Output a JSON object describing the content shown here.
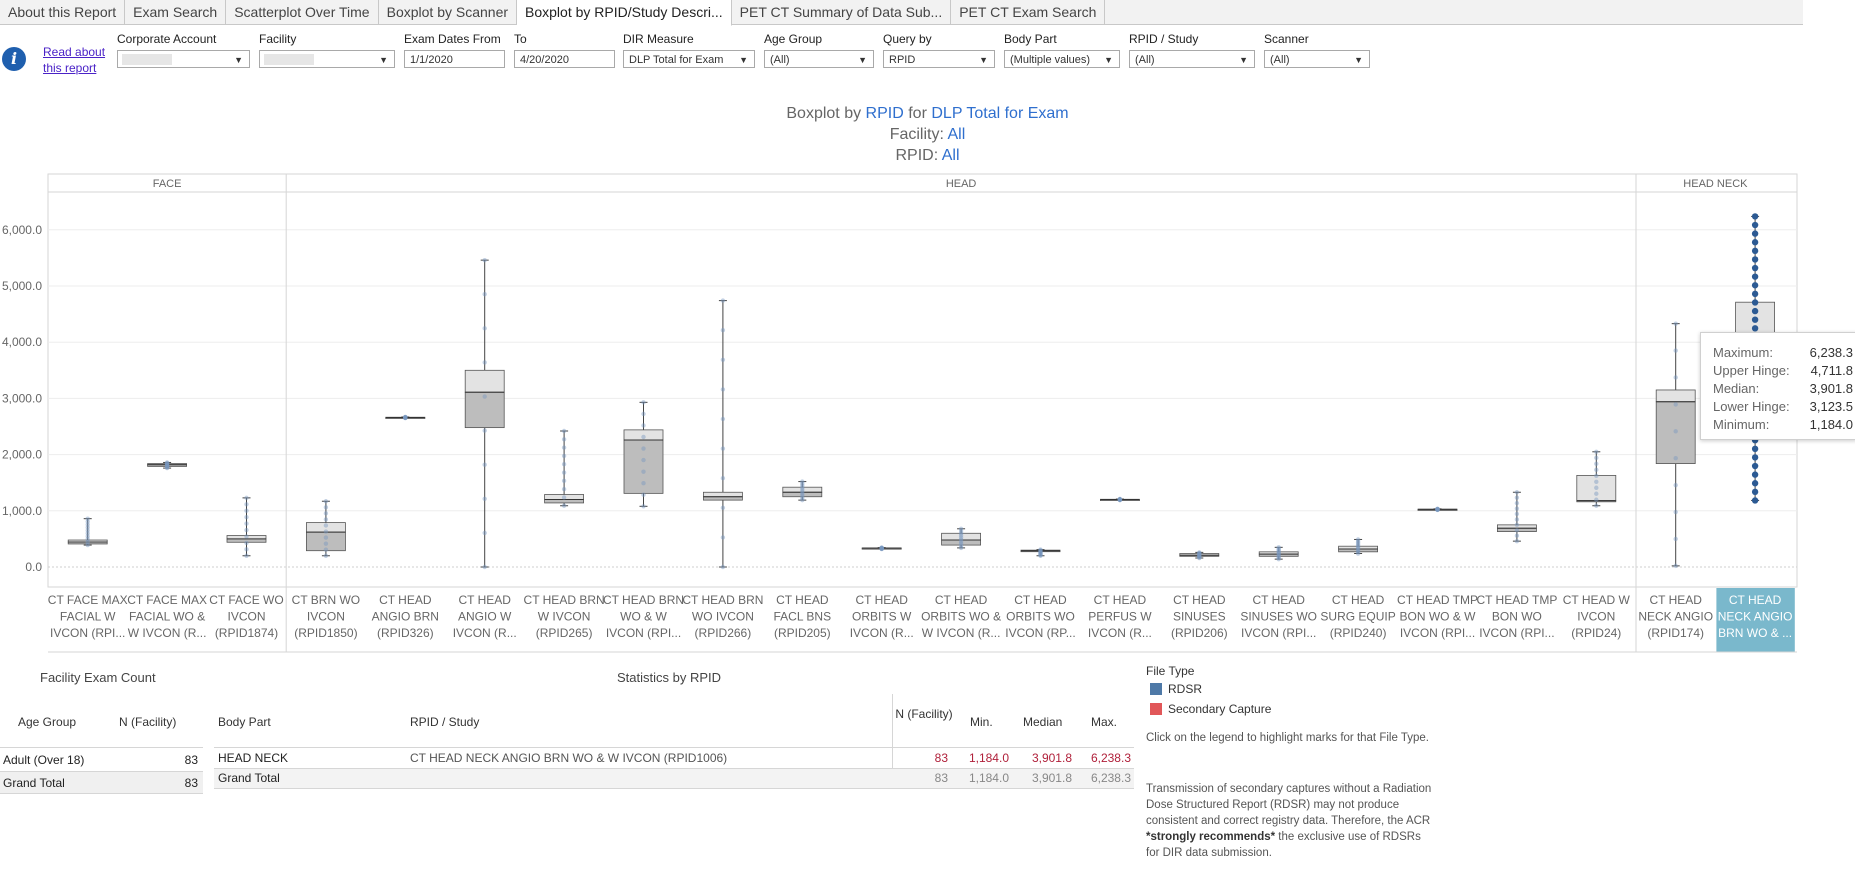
{
  "tabs": [
    {
      "label": "About this Report",
      "active": false
    },
    {
      "label": "Exam Search",
      "active": false
    },
    {
      "label": "Scatterplot Over Time",
      "active": false
    },
    {
      "label": "Boxplot by Scanner",
      "active": false
    },
    {
      "label": "Boxplot by RPID/Study Descri...",
      "active": true
    },
    {
      "label": "PET CT Summary of Data Sub...",
      "active": false
    },
    {
      "label": "PET CT Exam Search",
      "active": false
    }
  ],
  "read_about": "Read about this report",
  "filters": {
    "corporate_account": {
      "label": "Corporate Account",
      "value": ""
    },
    "facility": {
      "label": "Facility",
      "value": ""
    },
    "exam_dates_from": {
      "label": "Exam Dates From",
      "value": "1/1/2020"
    },
    "to": {
      "label": "To",
      "value": "4/20/2020"
    },
    "dir_measure": {
      "label": "DIR Measure",
      "value": "DLP Total for Exam"
    },
    "age_group": {
      "label": "Age Group",
      "value": "(All)"
    },
    "query_by": {
      "label": "Query by",
      "value": "RPID"
    },
    "body_part": {
      "label": "Body Part",
      "value": "(Multiple values)"
    },
    "rpid_study": {
      "label": "RPID / Study",
      "value": "(All)"
    },
    "scanner": {
      "label": "Scanner",
      "value": "(All)"
    }
  },
  "title": {
    "prefix": "Boxplot by",
    "query": "RPID",
    "mid": "for",
    "measure": "DLP Total for Exam",
    "facility_label": "Facility:",
    "facility_value": "All",
    "rpid_label": "RPID:",
    "rpid_value": "All"
  },
  "colors": {
    "accent": "#2f6fce",
    "rdsr": "#4e79a7",
    "secondary_capture": "#e15759",
    "selected_header": "#7ab8cc",
    "red_value": "#b0203a"
  },
  "chart_data": {
    "type": "boxplot",
    "y_ticks": [
      "0.0",
      "1,000.0",
      "2,000.0",
      "3,000.0",
      "4,000.0",
      "5,000.0",
      "6,000.0"
    ],
    "ylim": [
      0,
      6300
    ],
    "groups": [
      {
        "name": "FACE",
        "categories": [
          {
            "label": [
              "CT FACE MAX",
              "FACIAL W",
              "IVCON (RPI..."
            ],
            "min": 390,
            "q1": 410,
            "median": 445,
            "q3": 480,
            "max": 860
          },
          {
            "label": [
              "CT FACE MAX",
              "FACIAL WO &",
              "W IVCON (R..."
            ],
            "min": 1760,
            "q1": 1790,
            "median": 1820,
            "q3": 1840,
            "max": 1860
          },
          {
            "label": [
              "CT FACE WO",
              "IVCON",
              "(RPID1874)"
            ],
            "min": 200,
            "q1": 440,
            "median": 500,
            "q3": 560,
            "max": 1230
          }
        ]
      },
      {
        "name": "HEAD",
        "categories": [
          {
            "label": [
              "CT BRN WO",
              "IVCON",
              "(RPID1850)"
            ],
            "min": 200,
            "q1": 290,
            "median": 620,
            "q3": 790,
            "max": 1170
          },
          {
            "label": [
              "CT HEAD",
              "ANGIO BRN",
              "(RPID326)"
            ],
            "min": 2650,
            "q1": 2655,
            "median": 2660,
            "q3": 2665,
            "max": 2670
          },
          {
            "label": [
              "CT HEAD",
              "ANGIO W",
              "IVCON (R..."
            ],
            "min": 0,
            "q1": 2480,
            "median": 3110,
            "q3": 3500,
            "max": 5460
          },
          {
            "label": [
              "CT HEAD BRN",
              "W IVCON",
              "(RPID265)"
            ],
            "min": 1090,
            "q1": 1140,
            "median": 1200,
            "q3": 1290,
            "max": 2420
          },
          {
            "label": [
              "CT HEAD BRN",
              "WO & W",
              "IVCON (RPI..."
            ],
            "min": 1080,
            "q1": 1310,
            "median": 2260,
            "q3": 2440,
            "max": 2930
          },
          {
            "label": [
              "CT HEAD BRN",
              "WO IVCON",
              "(RPID266)"
            ],
            "min": 0,
            "q1": 1190,
            "median": 1250,
            "q3": 1330,
            "max": 4740
          },
          {
            "label": [
              "CT HEAD",
              "FACL BNS",
              "(RPID205)"
            ],
            "min": 1190,
            "q1": 1250,
            "median": 1330,
            "q3": 1420,
            "max": 1520
          },
          {
            "label": [
              "CT HEAD",
              "ORBITS W",
              "IVCON (R..."
            ],
            "min": 320,
            "q1": 330,
            "median": 335,
            "q3": 340,
            "max": 345
          },
          {
            "label": [
              "CT HEAD",
              "ORBITS WO &",
              "W IVCON (R..."
            ],
            "min": 340,
            "q1": 390,
            "median": 480,
            "q3": 600,
            "max": 680
          },
          {
            "label": [
              "CT HEAD",
              "ORBITS WO",
              "IVCON (RP..."
            ],
            "min": 200,
            "q1": 280,
            "median": 290,
            "q3": 300,
            "max": 310
          },
          {
            "label": [
              "CT HEAD",
              "PERFUS W",
              "IVCON (R..."
            ],
            "min": 1190,
            "q1": 1195,
            "median": 1200,
            "q3": 1205,
            "max": 1210
          },
          {
            "label": [
              "CT HEAD",
              "SINUSES",
              "(RPID206)"
            ],
            "min": 160,
            "q1": 190,
            "median": 210,
            "q3": 240,
            "max": 260
          },
          {
            "label": [
              "CT HEAD",
              "SINUSES WO",
              "IVCON (RPI..."
            ],
            "min": 140,
            "q1": 190,
            "median": 230,
            "q3": 270,
            "max": 350
          },
          {
            "label": [
              "CT HEAD",
              "SURG EQUIP",
              "(RPID240)"
            ],
            "min": 240,
            "q1": 270,
            "median": 320,
            "q3": 370,
            "max": 490
          },
          {
            "label": [
              "CT HEAD TMP",
              "BON WO & W",
              "IVCON (RPI..."
            ],
            "min": 1015,
            "q1": 1020,
            "median": 1025,
            "q3": 1030,
            "max": 1035
          },
          {
            "label": [
              "CT HEAD TMP",
              "BON WO",
              "IVCON (RPI..."
            ],
            "min": 460,
            "q1": 630,
            "median": 690,
            "q3": 750,
            "max": 1330
          },
          {
            "label": [
              "CT HEAD W",
              "IVCON",
              "(RPID24)"
            ],
            "min": 1090,
            "q1": 1160,
            "median": 1180,
            "q3": 1630,
            "max": 2050
          }
        ]
      },
      {
        "name": "HEAD NECK",
        "categories": [
          {
            "label": [
              "CT HEAD",
              "NECK ANGIO",
              "(RPID174)"
            ],
            "min": 20,
            "q1": 1840,
            "median": 2940,
            "q3": 3150,
            "max": 4330
          },
          {
            "label": [
              "CT HEAD",
              "NECK ANGIO",
              "BRN WO & ..."
            ],
            "min": 1184.0,
            "q1": 3123.5,
            "median": 3901.8,
            "q3": 4711.8,
            "max": 6238.3,
            "selected": true
          }
        ]
      }
    ]
  },
  "tooltip": {
    "maximum_label": "Maximum:",
    "maximum": "6,238.3",
    "upper_hinge_label": "Upper Hinge:",
    "upper_hinge": "4,711.8",
    "median_label": "Median:",
    "median": "3,901.8",
    "lower_hinge_label": "Lower Hinge:",
    "lower_hinge": "3,123.5",
    "minimum_label": "Minimum:",
    "minimum": "1,184.0"
  },
  "facility_exam_count": {
    "title": "Facility Exam Count",
    "headers": [
      "Age Group",
      "N (Facility)"
    ],
    "rows": [
      {
        "age_group": "Adult (Over 18)",
        "n": "83"
      },
      {
        "age_group": "Grand Total",
        "n": "83"
      }
    ]
  },
  "statistics": {
    "title": "Statistics by RPID",
    "headers": {
      "body_part": "Body Part",
      "rpid": "RPID / Study",
      "n": "N (Facility)",
      "min": "Min.",
      "median": "Median",
      "max": "Max."
    },
    "rows": [
      {
        "body_part": "HEAD NECK",
        "rpid": "CT HEAD NECK ANGIO BRN WO & W IVCON (RPID1006)",
        "n": "83",
        "min": "1,184.0",
        "median": "3,901.8",
        "max": "6,238.3"
      },
      {
        "body_part": "Grand Total",
        "rpid": "",
        "n": "83",
        "min": "1,184.0",
        "median": "3,901.8",
        "max": "6,238.3"
      }
    ]
  },
  "legend": {
    "title": "File Type",
    "items": [
      "RDSR",
      "Secondary Capture"
    ],
    "click_note": "Click on the legend to highlight marks for that File Type.",
    "transmission_note_pre": "Transmission of secondary captures without a Radiation Dose Structured Report (RDSR) may not produce consistent and correct registry data. Therefore, the ACR ",
    "transmission_note_bold": "*strongly recommends*",
    "transmission_note_post": " the exclusive use of RDSRs for DIR data submission."
  }
}
